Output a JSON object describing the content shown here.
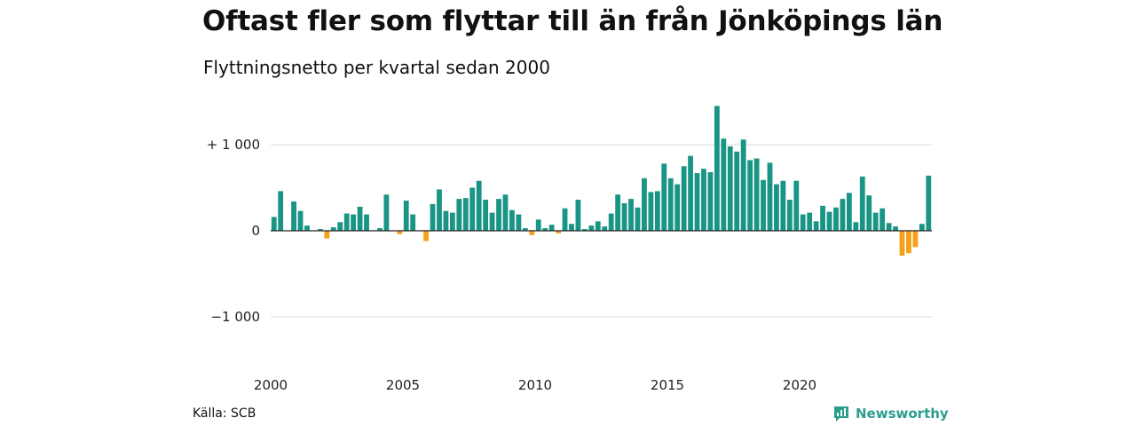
{
  "header": {
    "title": "Oftast fler som flyttar till än från Jönköpings län",
    "subtitle": "Flyttningsnetto per kvartal sedan 2000"
  },
  "footer": {
    "source": "Källa: SCB",
    "brand": "Newsworthy",
    "brand_icon": "bar-chart-logo-icon"
  },
  "colors": {
    "positive": "#1a9585",
    "negative": "#f5a01a",
    "grid": "#d9d9d9",
    "zero_line": "#222222",
    "brand": "#2a9d8f"
  },
  "chart_data": {
    "type": "bar",
    "title": "Oftast fler som flyttar till än från Jönköpings län",
    "subtitle": "Flyttningsnetto per kvartal sedan 2000",
    "xlabel": "",
    "ylabel": "",
    "ylim": [
      -1500,
      1500
    ],
    "yticks": [
      {
        "value": 1000,
        "label": "+ 1 000"
      },
      {
        "value": 0,
        "label": "0"
      },
      {
        "value": -1000,
        "label": "−1 000"
      }
    ],
    "xticks": [
      "2000",
      "2005",
      "2010",
      "2015",
      "2020"
    ],
    "grid": true,
    "categories": [
      "2000 K1",
      "2000 K2",
      "2000 K3",
      "2000 K4",
      "2001 K1",
      "2001 K2",
      "2001 K3",
      "2001 K4",
      "2002 K1",
      "2002 K2",
      "2002 K3",
      "2002 K4",
      "2003 K1",
      "2003 K2",
      "2003 K3",
      "2003 K4",
      "2004 K1",
      "2004 K2",
      "2004 K3",
      "2004 K4",
      "2005 K1",
      "2005 K2",
      "2005 K3",
      "2005 K4",
      "2006 K1",
      "2006 K2",
      "2006 K3",
      "2006 K4",
      "2007 K1",
      "2007 K2",
      "2007 K3",
      "2007 K4",
      "2008 K1",
      "2008 K2",
      "2008 K3",
      "2008 K4",
      "2009 K1",
      "2009 K2",
      "2009 K3",
      "2009 K4",
      "2010 K1",
      "2010 K2",
      "2010 K3",
      "2010 K4",
      "2011 K1",
      "2011 K2",
      "2011 K3",
      "2011 K4",
      "2012 K1",
      "2012 K2",
      "2012 K3",
      "2012 K4",
      "2013 K1",
      "2013 K2",
      "2013 K3",
      "2013 K4",
      "2014 K1",
      "2014 K2",
      "2014 K3",
      "2014 K4",
      "2015 K1",
      "2015 K2",
      "2015 K3",
      "2015 K4",
      "2016 K1",
      "2016 K2",
      "2016 K3",
      "2016 K4",
      "2017 K1",
      "2017 K2",
      "2017 K3",
      "2017 K4",
      "2018 K1",
      "2018 K2",
      "2018 K3",
      "2018 K4",
      "2019 K1",
      "2019 K2",
      "2019 K3",
      "2019 K4",
      "2020 K1",
      "2020 K2",
      "2020 K3",
      "2020 K4",
      "2021 K1",
      "2021 K2",
      "2021 K3",
      "2021 K4",
      "2022 K1",
      "2022 K2",
      "2022 K3",
      "2022 K4",
      "2023 K1",
      "2023 K2",
      "2023 K3",
      "2023 K4",
      "2024 K1",
      "2024 K2",
      "2024 K3",
      "2024 K4"
    ],
    "values": [
      160,
      460,
      0,
      340,
      230,
      60,
      0,
      20,
      -90,
      40,
      100,
      200,
      190,
      280,
      190,
      0,
      30,
      420,
      0,
      -40,
      350,
      190,
      0,
      -120,
      310,
      480,
      230,
      210,
      370,
      380,
      500,
      580,
      360,
      210,
      370,
      420,
      240,
      190,
      30,
      -50,
      130,
      30,
      70,
      -30,
      260,
      80,
      360,
      20,
      60,
      110,
      50,
      200,
      420,
      320,
      370,
      270,
      610,
      450,
      460,
      780,
      610,
      540,
      750,
      870,
      670,
      720,
      680,
      1450,
      1070,
      980,
      920,
      1060,
      820,
      840,
      590,
      790,
      540,
      580,
      360,
      580,
      190,
      210,
      110,
      290,
      220,
      270,
      370,
      440,
      100,
      630,
      410,
      210,
      260,
      90,
      50,
      -290,
      -260,
      -190,
      80,
      640
    ]
  }
}
